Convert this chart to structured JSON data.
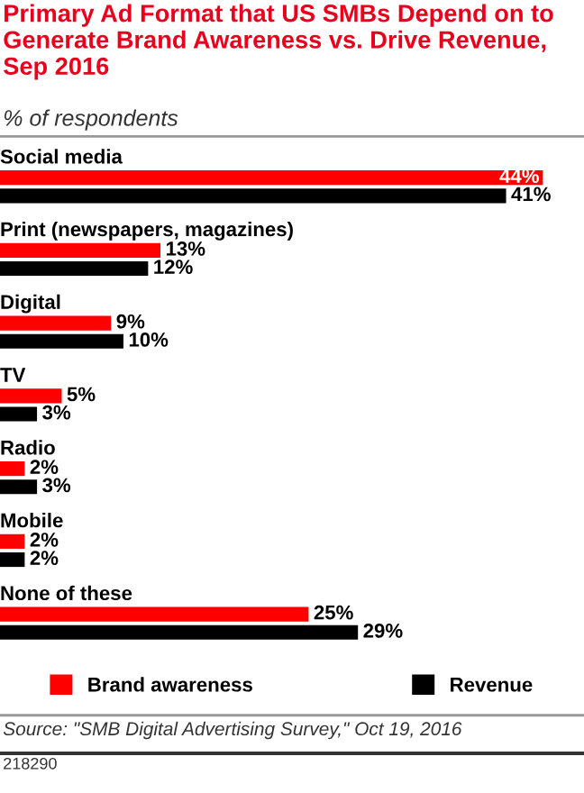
{
  "chart_data": {
    "type": "bar",
    "orientation": "horizontal",
    "title": "Primary Ad Format that US SMBs Depend on to Generate Brand Awareness vs. Drive Revenue, Sep 2016",
    "subtitle": "% of respondents",
    "categories": [
      "Social media",
      "Print (newspapers, magazines)",
      "Digital",
      "TV",
      "Radio",
      "Mobile",
      "None of these"
    ],
    "series": [
      {
        "name": "Brand awareness",
        "color": "#ff0000",
        "values": [
          44,
          13,
          9,
          5,
          2,
          2,
          25
        ],
        "value_labels": [
          "44%",
          "13%",
          "9%",
          "5%",
          "2%",
          "2%",
          "25%"
        ]
      },
      {
        "name": "Revenue",
        "color": "#000000",
        "values": [
          41,
          12,
          10,
          3,
          3,
          2,
          29
        ],
        "value_labels": [
          "41%",
          "12%",
          "10%",
          "3%",
          "3%",
          "2%",
          "29%"
        ]
      }
    ],
    "legend": "bottom",
    "annotations": [
      "Source: \"SMB Digital Advertising Survey,\" Oct 19, 2016",
      "218290"
    ]
  }
}
